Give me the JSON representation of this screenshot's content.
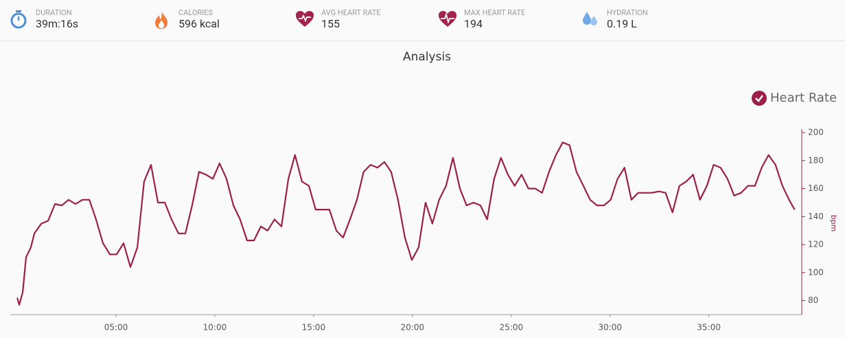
{
  "stats": [
    {
      "label": "DURATION",
      "value": "39m:16s"
    },
    {
      "label": "CALORIES",
      "value": "596 kcal"
    },
    {
      "label": "AVG HEART RATE",
      "value": "155"
    },
    {
      "label": "MAX HEART RATE",
      "value": "194"
    },
    {
      "label": "HYDRATION",
      "value": "0.19 L"
    }
  ],
  "chart_data": {
    "type": "line",
    "title": "Analysis",
    "y_label": "bpm",
    "x": [
      0,
      0.1,
      0.28,
      0.45,
      0.69,
      0.87,
      1.22,
      1.56,
      1.91,
      2.26,
      2.6,
      2.95,
      3.3,
      3.65,
      3.99,
      4.34,
      4.69,
      5.03,
      5.38,
      5.73,
      6.08,
      6.42,
      6.77,
      7.12,
      7.47,
      7.81,
      8.16,
      8.51,
      8.85,
      9.2,
      9.55,
      9.9,
      10.24,
      10.59,
      10.94,
      11.28,
      11.63,
      11.98,
      12.33,
      12.67,
      13.02,
      13.37,
      13.72,
      14.06,
      14.41,
      14.76,
      15.1,
      15.45,
      15.8,
      16.15,
      16.49,
      16.84,
      17.19,
      17.53,
      17.88,
      18.23,
      18.58,
      18.92,
      19.27,
      19.62,
      19.97,
      20.31,
      20.66,
      21.01,
      21.35,
      21.7,
      22.05,
      22.4,
      22.74,
      23.09,
      23.44,
      23.78,
      24.13,
      24.48,
      24.83,
      25.17,
      25.52,
      25.87,
      26.22,
      26.56,
      26.91,
      27.26,
      27.6,
      27.95,
      28.3,
      28.65,
      28.99,
      29.34,
      29.69,
      30.03,
      30.38,
      30.73,
      31.08,
      31.42,
      31.77,
      32.12,
      32.47,
      32.81,
      33.16,
      33.51,
      33.85,
      34.2,
      34.55,
      34.9,
      35.24,
      35.59,
      35.94,
      36.28,
      36.63,
      36.98,
      37.33,
      37.67,
      38.02,
      38.37,
      38.72,
      39.06,
      39.34
    ],
    "series": [
      {
        "name": "Heart Rate",
        "color": "#9b1f49",
        "values": [
          82,
          77,
          86,
          111,
          118,
          128,
          135,
          137,
          149,
          148,
          152,
          149,
          152,
          152,
          138,
          121,
          113,
          113,
          121,
          104,
          118,
          165,
          177,
          150,
          150,
          138,
          128,
          128,
          148,
          172,
          170,
          167,
          178,
          167,
          148,
          138,
          123,
          123,
          133,
          130,
          138,
          133,
          167,
          184,
          165,
          162,
          145,
          145,
          145,
          130,
          125,
          138,
          152,
          172,
          177,
          175,
          179,
          172,
          152,
          125,
          109,
          118,
          150,
          135,
          152,
          162,
          182,
          160,
          148,
          150,
          148,
          138,
          167,
          182,
          170,
          162,
          170,
          160,
          160,
          157,
          172,
          184,
          193,
          191,
          172,
          162,
          152,
          148,
          148,
          152,
          167,
          175,
          152,
          157,
          157,
          157,
          158,
          157,
          143,
          162,
          165,
          170,
          152,
          162,
          177,
          175,
          167,
          155,
          157,
          162,
          162,
          175,
          184,
          177,
          162,
          152,
          145
        ]
      }
    ],
    "xlim": [
      -0.35,
      39.7
    ],
    "xticks": [
      {
        "value": 5,
        "label": "05:00"
      },
      {
        "value": 10,
        "label": "10:00"
      },
      {
        "value": 15,
        "label": "15:00"
      },
      {
        "value": 20,
        "label": "20:00"
      },
      {
        "value": 25,
        "label": "25:00"
      },
      {
        "value": 30,
        "label": "30:00"
      },
      {
        "value": 35,
        "label": "35:00"
      }
    ],
    "ylim": [
      70,
      200
    ],
    "yticks": [
      80,
      100,
      120,
      140,
      160,
      180,
      200
    ],
    "legend": "top-right",
    "grid": false
  }
}
